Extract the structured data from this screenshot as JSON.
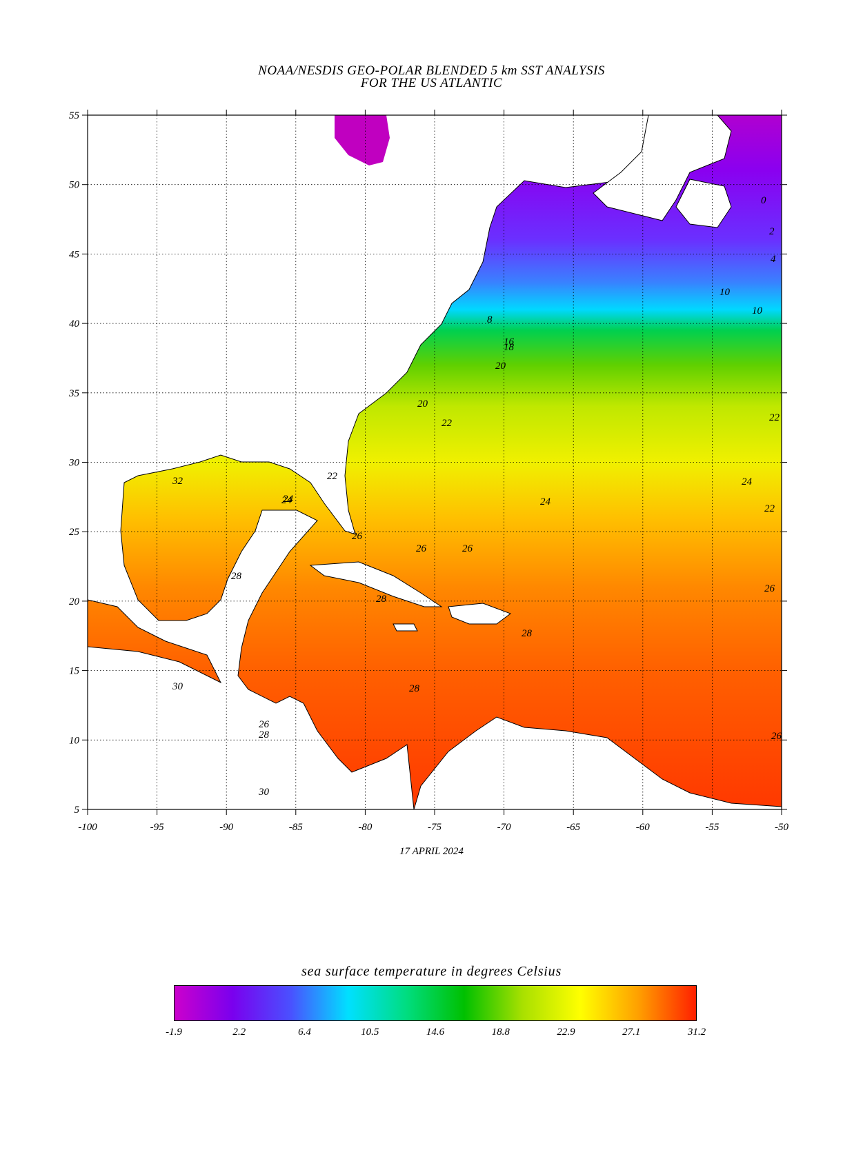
{
  "title": {
    "line1": "NOAA/NESDIS GEO-POLAR BLENDED 5 km SST ANALYSIS",
    "line2": "FOR THE US ATLANTIC"
  },
  "date": "17 APRIL 2024",
  "map": {
    "lon_range": [
      -100,
      -50
    ],
    "lat_range": [
      5,
      55
    ],
    "lon_ticks": [
      "-100",
      "-95",
      "-90",
      "-85",
      "-80",
      "-75",
      "-70",
      "-65",
      "-60",
      "-55",
      "-50"
    ],
    "lat_ticks": [
      "5",
      "10",
      "15",
      "20",
      "25",
      "30",
      "35",
      "40",
      "45",
      "50",
      "55"
    ],
    "grid": "dotted",
    "land_color": "#ffffff",
    "contour_labels": [
      "0",
      "2",
      "4",
      "10",
      "10",
      "8",
      "16",
      "18",
      "20",
      "20",
      "22",
      "22",
      "24",
      "24",
      "22",
      "24",
      "26",
      "26",
      "26",
      "26",
      "28",
      "28",
      "28",
      "28",
      "30",
      "26",
      "28",
      "30",
      "32",
      "22",
      "24",
      "26"
    ]
  },
  "legend": {
    "title": "sea surface temperature in degrees Celsius",
    "ticks": [
      "-1.9",
      "2.2",
      "6.4",
      "10.5",
      "14.6",
      "18.8",
      "22.9",
      "27.1",
      "31.2"
    ],
    "colors": [
      "#cc00cc",
      "#7a00ee",
      "#4a50ff",
      "#00e0ff",
      "#00dd80",
      "#00c000",
      "#a8e000",
      "#ffff00",
      "#ffa000",
      "#ff2000"
    ]
  }
}
